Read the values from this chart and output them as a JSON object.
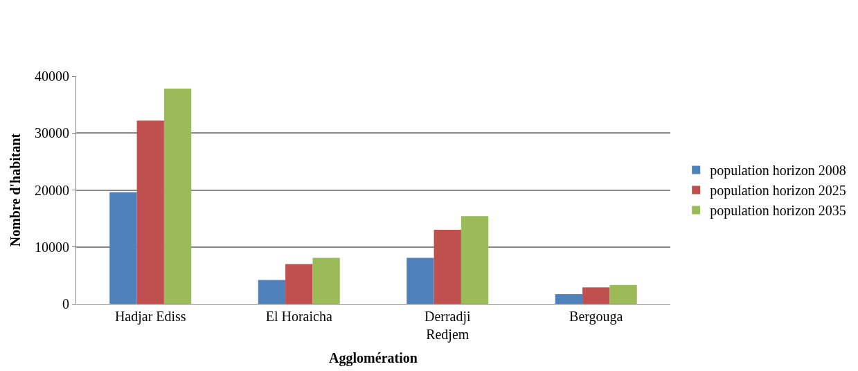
{
  "chart_data": {
    "type": "bar",
    "xlabel": "Agglomération",
    "ylabel": "Nombre d'habitant",
    "categories": [
      "Hadjar Ediss",
      "El Horaicha",
      "Derradji Redjem",
      "Bergouga"
    ],
    "series": [
      {
        "name": "population horizon 2008",
        "color": "#4f81bd",
        "values": [
          19600,
          4200,
          8100,
          1700
        ]
      },
      {
        "name": "population horizon 2025",
        "color": "#c0504d",
        "values": [
          32200,
          7000,
          13000,
          2900
        ]
      },
      {
        "name": "population horizon 2035",
        "color": "#9bbb59",
        "values": [
          37800,
          8100,
          15400,
          3300
        ]
      }
    ],
    "ylim": [
      0,
      40000
    ],
    "yticks": [
      0,
      10000,
      20000,
      30000,
      40000
    ],
    "grid": "y",
    "legend": "right"
  }
}
